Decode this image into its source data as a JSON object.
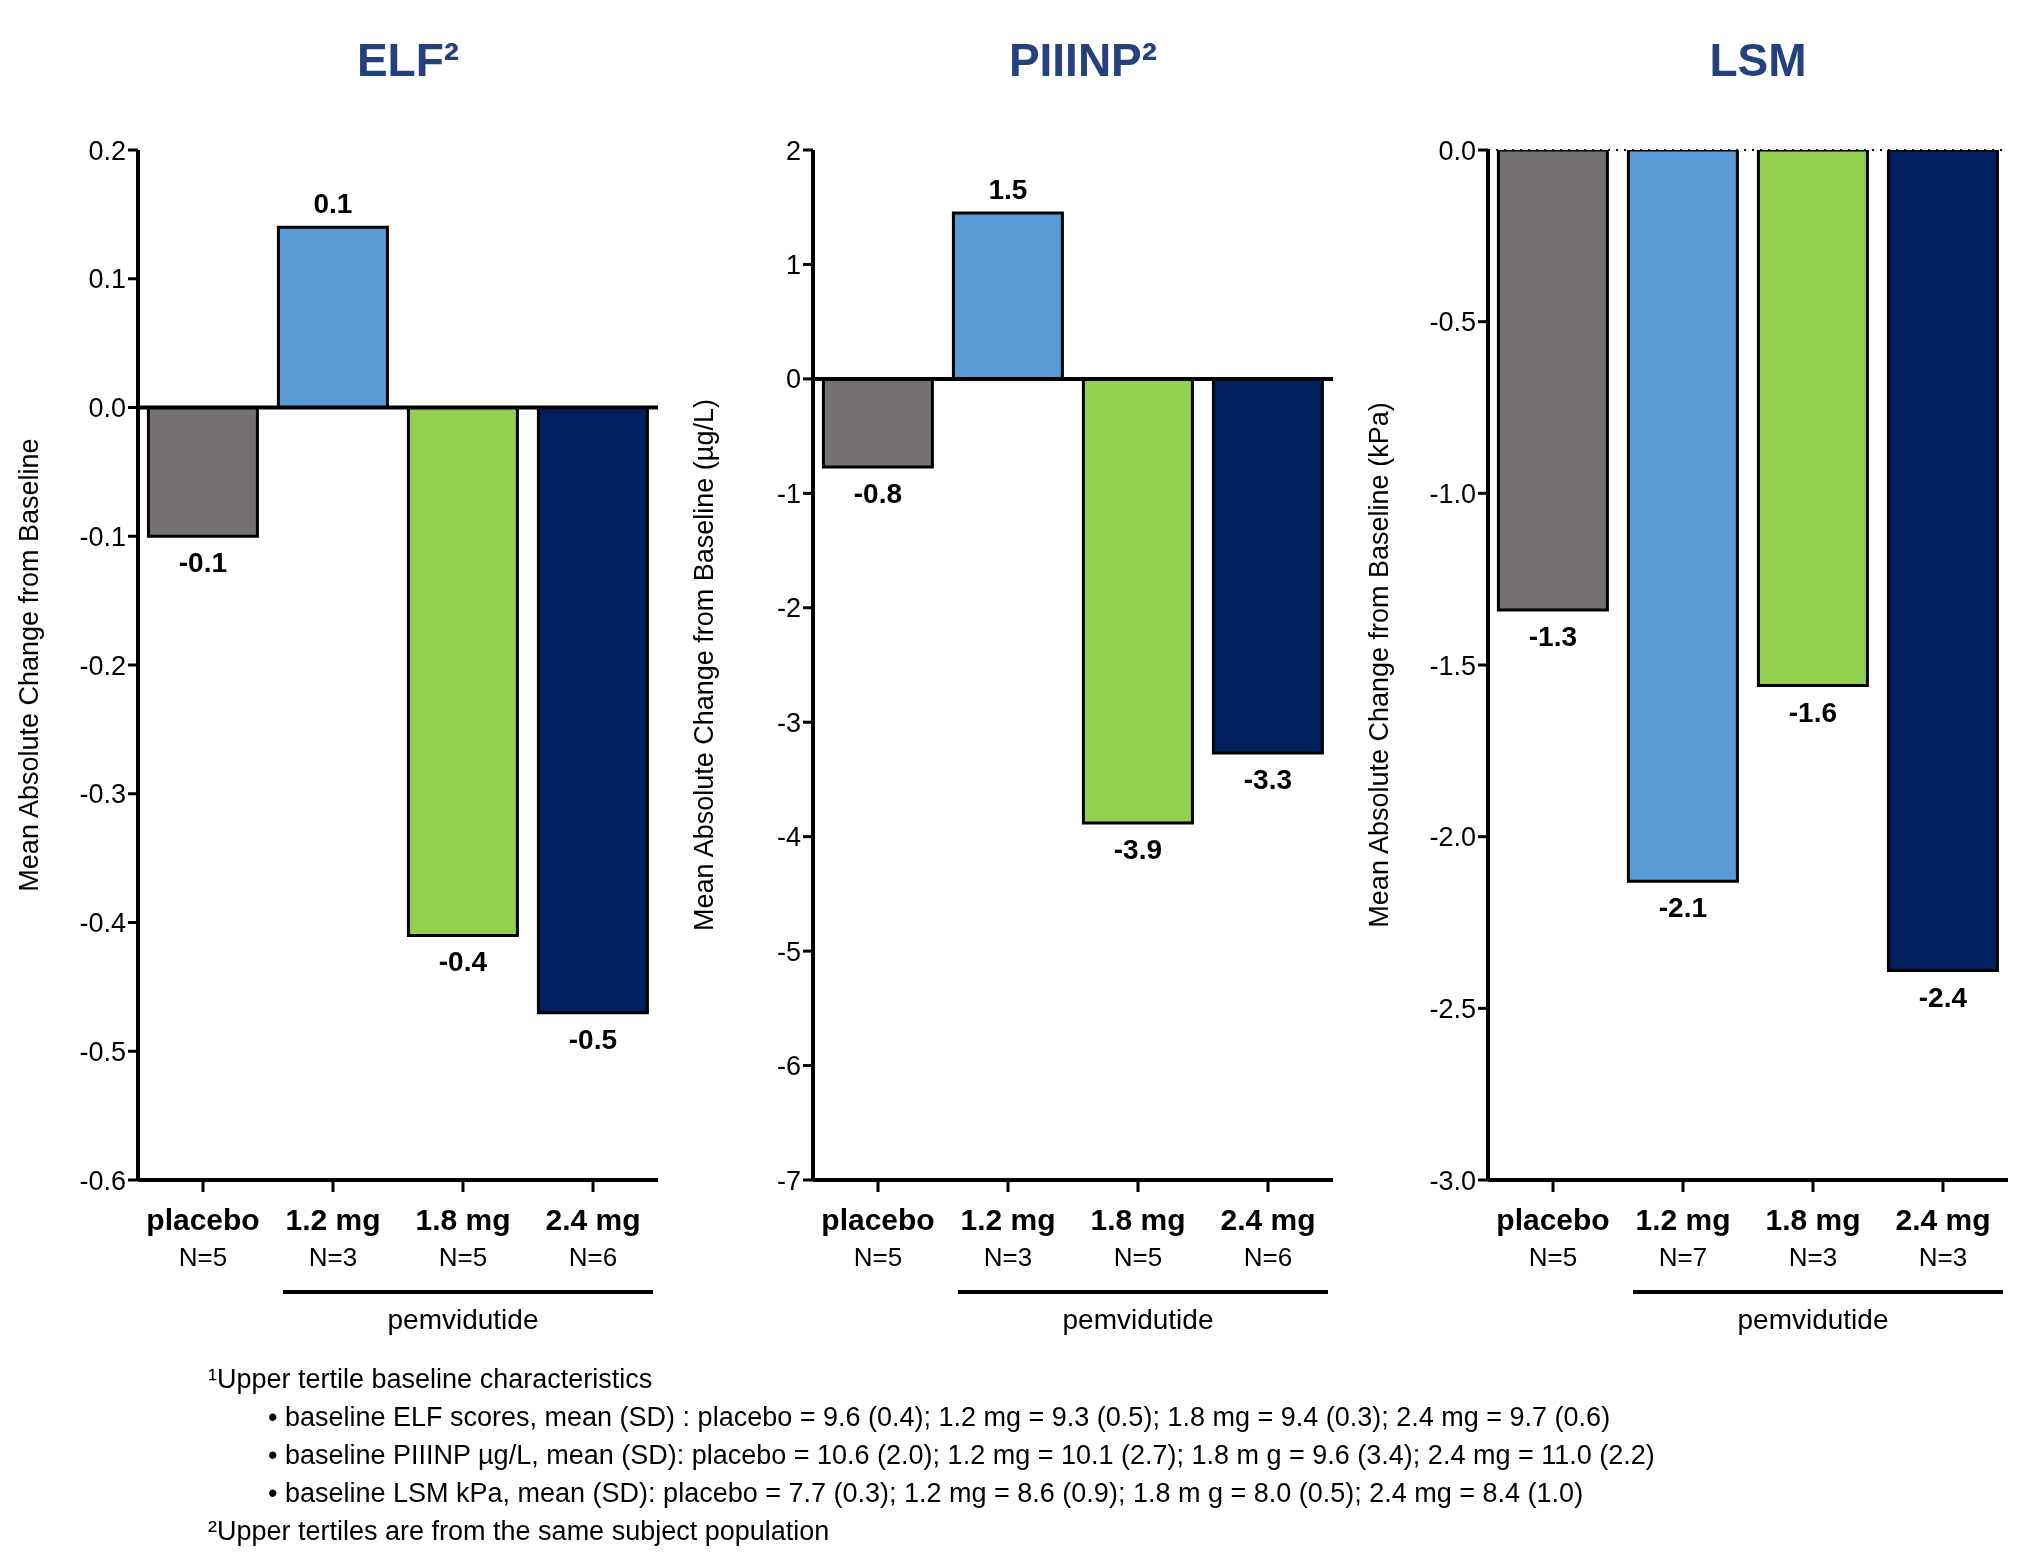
{
  "chart_data": [
    {
      "type": "bar",
      "title": "ELF²",
      "ylabel": "Mean Absolute Change from Baseline",
      "categories": [
        "placebo\nN=5",
        "1.2 mg\nN=3",
        "1.8 mg\nN=5",
        "2.4 mg\nN=6"
      ],
      "values": [
        -0.1,
        0.14,
        -0.41,
        -0.47
      ],
      "colors": [
        "#767171",
        "#5b9bd5",
        "#92d050",
        "#002060"
      ],
      "value_labels": [
        "-0.1",
        "0.1",
        "-0.4",
        "-0.5"
      ],
      "ylim": [
        -0.6,
        0.2
      ],
      "yticks": [
        0.2,
        0.1,
        {
          "value": 0,
          "label": "0.0"
        },
        -0.1,
        -0.2,
        -0.3,
        -0.4,
        -0.5,
        -0.6
      ],
      "ref_lines": [
        {
          "axis": "y",
          "value": 0,
          "line_style": "solid"
        }
      ],
      "annotations": [
        "pemvidutide",
        "¹Upper tertile baseline characteristics",
        "• baseline ELF scores, mean (SD) : placebo = 9.6 (0.4); 1.2 mg = 9.3 (0.5); 1.8 mg = 9.4 (0.3); 2.4 mg = 9.7 (0.6)",
        "• baseline PIIINP µg/L, mean (SD): placebo = 10.6 (2.0); 1.2 mg = 10.1 (2.7); 1.8 m g = 9.6 (3.4); 2.4 mg = 11.0 (2.2)",
        "• baseline LSM kPa, mean (SD): placebo = 7.7 (0.3); 1.2 mg = 8.6 (0.9); 1.8 m g = 8.0 (0.5); 2.4 mg = 8.4 (1.0)",
        "²Upper tertiles are from the same subject population"
      ]
    },
    {
      "type": "bar",
      "title": "PIIINP²",
      "ylabel": "Mean Absolute Change from Baseline (µg/L)",
      "categories": [
        "placebo\nN=5",
        "1.2 mg\nN=3",
        "1.8 mg\nN=5",
        "2.4 mg\nN=6"
      ],
      "values": [
        -0.77,
        1.45,
        -3.88,
        -3.27
      ],
      "colors": [
        "#767171",
        "#5b9bd5",
        "#92d050",
        "#002060"
      ],
      "value_labels": [
        "-0.8",
        "1.5",
        "-3.9",
        "-3.3"
      ],
      "ylim": [
        -7,
        2
      ],
      "yticks": [
        2,
        1,
        0,
        -1,
        -2,
        -3,
        -4,
        -5,
        -6,
        -7
      ],
      "ref_lines": [
        {
          "axis": "y",
          "value": 0,
          "line_style": "solid"
        }
      ],
      "annotations": [
        "pemvidutide"
      ]
    },
    {
      "type": "bar",
      "title": "LSM",
      "ylabel": "Mean Absolute Change from Baseline (kPa)",
      "categories": [
        "placebo\nN=5",
        "1.2 mg\nN=7",
        "1.8 mg\nN=3",
        "2.4 mg\nN=3"
      ],
      "values": [
        -1.34,
        -2.13,
        -1.56,
        -2.39
      ],
      "colors": [
        "#767171",
        "#5b9bd5",
        "#92d050",
        "#002060"
      ],
      "value_labels": [
        "-1.3",
        "-2.1",
        "-1.6",
        "-2.4"
      ],
      "ylim": [
        -3,
        0
      ],
      "yticks": [
        {
          "value": 0,
          "label": "0.0"
        },
        -0.5,
        {
          "value": -1,
          "label": "-1.0"
        },
        -1.5,
        {
          "value": -2,
          "label": "-2.0"
        },
        -2.5,
        {
          "value": -3,
          "label": "-3.0"
        }
      ],
      "ref_lines": [
        {
          "axis": "y",
          "value": 0,
          "line_style": "dotted"
        }
      ],
      "annotations": [
        "pemvidutide"
      ]
    }
  ]
}
